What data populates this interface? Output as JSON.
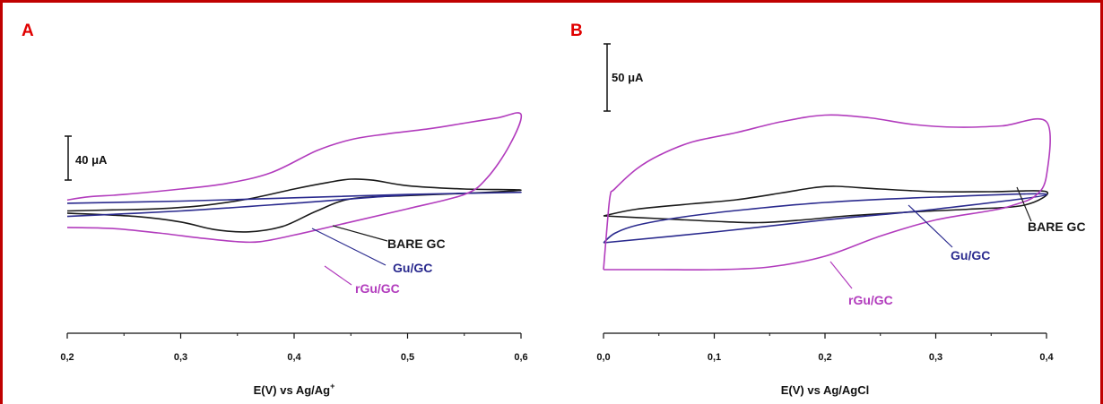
{
  "colors": {
    "bare": "#1a1a1a",
    "gu": "#2a2a8e",
    "rgu": "#b23cbd",
    "frame": "#c00000",
    "letter": "#e00000"
  },
  "chart_data": [
    {
      "panel": "A",
      "type": "line",
      "xlabel": "E(V) vs Ag/Ag",
      "xlabel_sup": "+",
      "xlim": [
        0.2,
        0.6
      ],
      "xticks": [
        "0,2",
        "0,3",
        "0,4",
        "0,5",
        "0,6"
      ],
      "scale_bar": "40 μA",
      "scale_bar_value_uA": 40,
      "series": [
        {
          "name": "BARE GC",
          "color_key": "bare",
          "points": [
            [
              0.2,
              -20
            ],
            [
              0.24,
              -19
            ],
            [
              0.28,
              -18
            ],
            [
              0.32,
              -15
            ],
            [
              0.36,
              -9
            ],
            [
              0.4,
              0
            ],
            [
              0.43,
              6
            ],
            [
              0.45,
              9
            ],
            [
              0.47,
              8
            ],
            [
              0.5,
              3
            ],
            [
              0.55,
              0
            ],
            [
              0.6,
              -1
            ],
            [
              0.55,
              -4
            ],
            [
              0.5,
              -6
            ],
            [
              0.45,
              -9
            ],
            [
              0.42,
              -20
            ],
            [
              0.39,
              -34
            ],
            [
              0.36,
              -39
            ],
            [
              0.33,
              -37
            ],
            [
              0.3,
              -30
            ],
            [
              0.26,
              -25
            ],
            [
              0.2,
              -22
            ]
          ]
        },
        {
          "name": "Gu/GC",
          "color_key": "gu",
          "points": [
            [
              0.2,
              -13
            ],
            [
              0.3,
              -11
            ],
            [
              0.4,
              -8
            ],
            [
              0.5,
              -5
            ],
            [
              0.6,
              -3
            ],
            [
              0.5,
              -5.5
            ],
            [
              0.4,
              -13
            ],
            [
              0.3,
              -20
            ],
            [
              0.2,
              -25
            ]
          ]
        },
        {
          "name": "rGu/GC",
          "color_key": "rgu",
          "points": [
            [
              0.2,
              -10
            ],
            [
              0.22,
              -7
            ],
            [
              0.25,
              -5
            ],
            [
              0.3,
              0
            ],
            [
              0.34,
              5
            ],
            [
              0.38,
              15
            ],
            [
              0.42,
              35
            ],
            [
              0.45,
              45
            ],
            [
              0.48,
              50
            ],
            [
              0.52,
              55
            ],
            [
              0.55,
              60
            ],
            [
              0.58,
              65
            ],
            [
              0.6,
              68
            ],
            [
              0.59,
              40
            ],
            [
              0.57,
              10
            ],
            [
              0.55,
              -5
            ],
            [
              0.5,
              -18
            ],
            [
              0.45,
              -30
            ],
            [
              0.4,
              -42
            ],
            [
              0.37,
              -48
            ],
            [
              0.35,
              -48
            ],
            [
              0.32,
              -45
            ],
            [
              0.28,
              -40
            ],
            [
              0.24,
              -36
            ],
            [
              0.2,
              -35
            ]
          ]
        }
      ]
    },
    {
      "panel": "B",
      "type": "line",
      "xlabel": "E(V) vs Ag/AgCl",
      "xlim": [
        0.0,
        0.4
      ],
      "xticks": [
        "0,0",
        "0,1",
        "0,2",
        "0,3",
        "0,4"
      ],
      "scale_bar": "50 μA",
      "scale_bar_value_uA": 50,
      "series": [
        {
          "name": "BARE GC",
          "color_key": "bare",
          "points": [
            [
              0.0,
              0
            ],
            [
              0.03,
              5
            ],
            [
              0.08,
              9
            ],
            [
              0.12,
              12
            ],
            [
              0.16,
              17
            ],
            [
              0.19,
              21
            ],
            [
              0.21,
              22
            ],
            [
              0.25,
              20
            ],
            [
              0.3,
              18
            ],
            [
              0.35,
              18
            ],
            [
              0.4,
              18
            ],
            [
              0.38,
              8
            ],
            [
              0.33,
              5
            ],
            [
              0.28,
              3
            ],
            [
              0.22,
              0
            ],
            [
              0.18,
              -3
            ],
            [
              0.14,
              -5
            ],
            [
              0.1,
              -4
            ],
            [
              0.05,
              -2
            ],
            [
              0.0,
              0
            ]
          ]
        },
        {
          "name": "Gu/GC",
          "color_key": "gu",
          "points": [
            [
              0.0,
              -20
            ],
            [
              0.01,
              -13
            ],
            [
              0.03,
              -7
            ],
            [
              0.07,
              -1
            ],
            [
              0.12,
              4
            ],
            [
              0.2,
              10
            ],
            [
              0.3,
              14
            ],
            [
              0.4,
              16
            ],
            [
              0.3,
              5
            ],
            [
              0.2,
              -3
            ],
            [
              0.1,
              -12
            ],
            [
              0.0,
              -20
            ]
          ]
        },
        {
          "name": "rGu/GC",
          "color_key": "rgu",
          "points": [
            [
              0.0,
              -40
            ],
            [
              0.003,
              -10
            ],
            [
              0.006,
              15
            ],
            [
              0.01,
              20
            ],
            [
              0.03,
              35
            ],
            [
              0.05,
              45
            ],
            [
              0.08,
              55
            ],
            [
              0.12,
              62
            ],
            [
              0.16,
              70
            ],
            [
              0.2,
              75
            ],
            [
              0.24,
              73
            ],
            [
              0.28,
              68
            ],
            [
              0.32,
              66
            ],
            [
              0.36,
              67
            ],
            [
              0.4,
              70
            ],
            [
              0.4,
              30
            ],
            [
              0.39,
              15
            ],
            [
              0.37,
              8
            ],
            [
              0.35,
              4
            ],
            [
              0.3,
              -3
            ],
            [
              0.25,
              -15
            ],
            [
              0.2,
              -30
            ],
            [
              0.15,
              -38
            ],
            [
              0.1,
              -40
            ],
            [
              0.05,
              -40
            ],
            [
              0.0,
              -40
            ]
          ]
        }
      ]
    }
  ]
}
